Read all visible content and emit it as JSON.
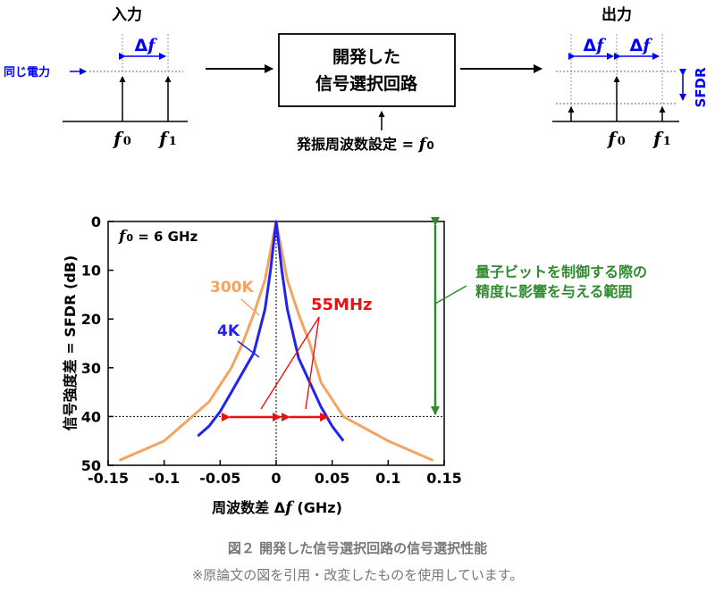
{
  "diagram": {
    "input_label": "入力",
    "output_label": "出力",
    "same_power_label": "同じ電力",
    "delta_f": "Δ",
    "f_sym": "f",
    "f0_sub": "0",
    "f1_sub": "1",
    "box_line1": "開発した",
    "box_line2": "信号選択回路",
    "osc_label": "発振周波数設定 = ",
    "sfdr_label": "SFDR"
  },
  "chart_data": {
    "type": "line",
    "xlabel_prefix": "周波数差 Δ",
    "xlabel_suffix": " (GHz)",
    "ylabel": "信号強度差 = SFDR (dB)",
    "xlim": [
      -0.15,
      0.15
    ],
    "ylim": [
      0,
      50
    ],
    "y_inverted": true,
    "xticks": [
      "-0.15",
      "-0.1",
      "-0.05",
      "0",
      "0.05",
      "0.1",
      "0.15"
    ],
    "yticks": [
      "0",
      "10",
      "20",
      "30",
      "40",
      "50"
    ],
    "condition_label": " = 6 GHz",
    "series": [
      {
        "name": "300K",
        "color": "#F4A460",
        "x": [
          -0.14,
          -0.1,
          -0.06,
          -0.04,
          -0.03,
          -0.02,
          -0.01,
          -0.005,
          0,
          0.005,
          0.01,
          0.02,
          0.03,
          0.04,
          0.06,
          0.1,
          0.14
        ],
        "y": [
          49,
          45,
          37,
          30,
          25,
          19,
          12,
          6,
          0,
          6,
          12,
          19,
          25,
          33,
          40,
          45,
          49
        ]
      },
      {
        "name": "4K",
        "color": "#2222EE",
        "x": [
          -0.07,
          -0.06,
          -0.05,
          -0.04,
          -0.03,
          -0.02,
          -0.01,
          -0.005,
          0,
          0.005,
          0.01,
          0.02,
          0.03,
          0.04,
          0.05,
          0.06
        ],
        "y": [
          44,
          42,
          39,
          35,
          31,
          27,
          18,
          10,
          0,
          10,
          18,
          28,
          33,
          38,
          42,
          45
        ]
      }
    ],
    "threshold_y": 40,
    "annotation_55mhz": "55MHz",
    "annotation_range": [
      "量子ビットを制御する際の",
      "精度に影響を与える範囲"
    ]
  },
  "colors": {
    "blue": "#0000FF",
    "red": "#EE1111",
    "green": "#2E8B2E",
    "orange": "#F4A460"
  },
  "captions": {
    "figure": "図２ 開発した信号選択回路の信号選択性能",
    "note": "※原論文の図を引用・改変したものを使用しています。"
  }
}
